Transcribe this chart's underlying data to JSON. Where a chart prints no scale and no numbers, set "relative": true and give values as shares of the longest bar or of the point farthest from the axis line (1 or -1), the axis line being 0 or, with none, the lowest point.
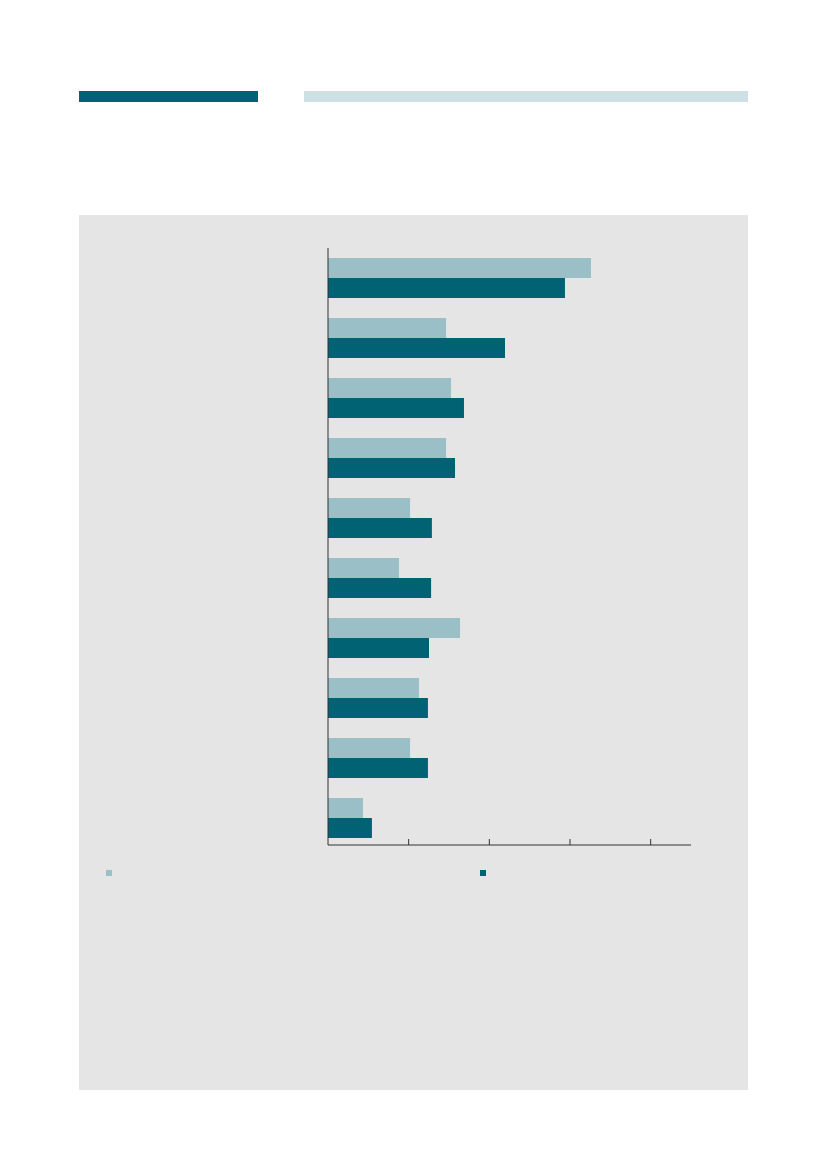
{
  "chart_data": {
    "type": "bar",
    "orientation": "horizontal",
    "relative": true,
    "categories": [
      null,
      null,
      null,
      null,
      null,
      null,
      null,
      null,
      null,
      null
    ],
    "series": [
      {
        "color": "#9bbfc6",
        "values": [
          1,
          0.449,
          0.468,
          0.449,
          0.312,
          0.27,
          0.502,
          0.346,
          0.312,
          0.133
        ]
      },
      {
        "color": "#006272",
        "values": [
          0.901,
          0.673,
          0.517,
          0.483,
          0.395,
          0.392,
          0.384,
          0.38,
          0.38,
          0.167
        ]
      }
    ]
  }
}
